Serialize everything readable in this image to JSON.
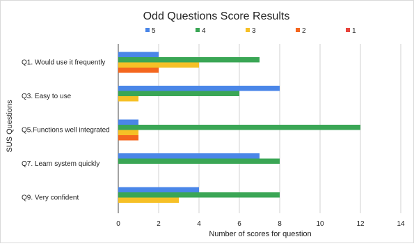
{
  "chart_data": {
    "type": "bar",
    "orientation": "horizontal",
    "title": "Odd Questions Score Results",
    "xlabel": "Number of scores for question",
    "ylabel": "SUS Questions",
    "categories": [
      "Q1. Would use it frequently",
      "Q3. Easy to use",
      "Q5.Functions well integrated",
      "Q7. Learn system quickly",
      "Q9. Very confident"
    ],
    "series": [
      {
        "name": "5",
        "color": "#4a86e8",
        "values": [
          2,
          8,
          1,
          7,
          4
        ]
      },
      {
        "name": "4",
        "color": "#3aa655",
        "values": [
          7,
          6,
          12,
          8,
          8
        ]
      },
      {
        "name": "3",
        "color": "#f6c026",
        "values": [
          4,
          1,
          1,
          0,
          3
        ]
      },
      {
        "name": "2",
        "color": "#f4661e",
        "values": [
          2,
          0,
          1,
          0,
          0
        ]
      },
      {
        "name": "1",
        "color": "#e8453c",
        "values": [
          0,
          0,
          0,
          0,
          0
        ]
      }
    ],
    "xlim": [
      0,
      14
    ],
    "xticks": [
      0,
      2,
      4,
      6,
      8,
      10,
      12,
      14
    ],
    "grid": "vertical",
    "legend_position": "top"
  }
}
